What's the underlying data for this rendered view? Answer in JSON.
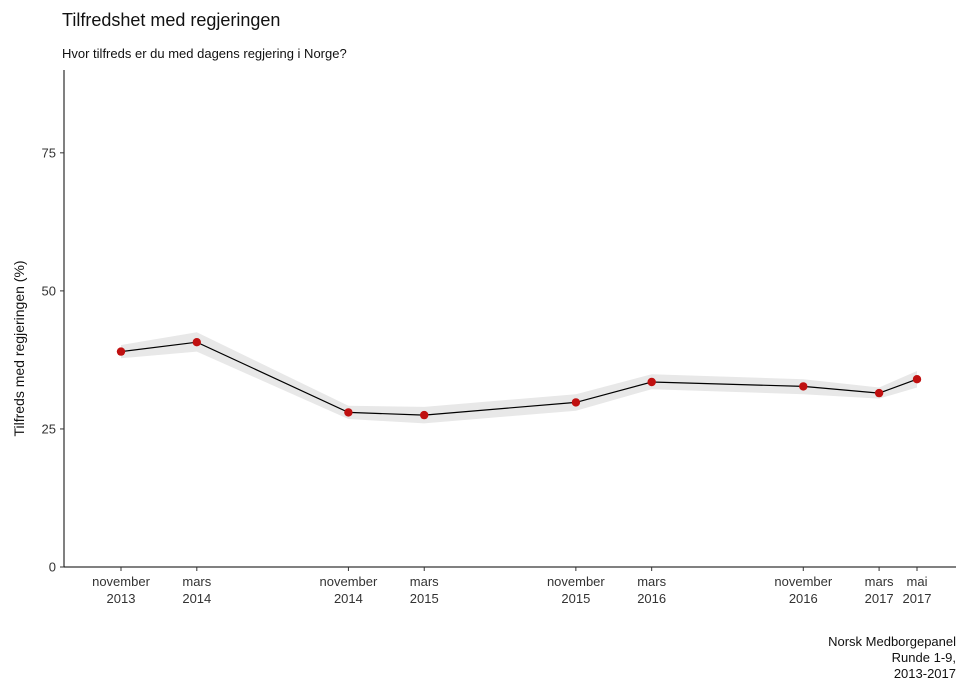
{
  "chart_data": {
    "type": "line",
    "title": "Tilfredshet med regjeringen",
    "subtitle": "Hvor tilfreds er du med dagens regjering i Norge?",
    "xlabel": "",
    "ylabel": "Tilfreds med regjeringen (%)",
    "ylim": [
      0,
      90
    ],
    "yticks": [
      0,
      25,
      50,
      75
    ],
    "grid": false,
    "legend": "none",
    "x": [
      "2013-11",
      "2014-03",
      "2014-11",
      "2015-03",
      "2015-11",
      "2016-03",
      "2016-11",
      "2017-03",
      "2017-05"
    ],
    "xtick_labels": [
      [
        "november",
        "2013"
      ],
      [
        "mars",
        "2014"
      ],
      [
        "november",
        "2014"
      ],
      [
        "mars",
        "2015"
      ],
      [
        "november",
        "2015"
      ],
      [
        "mars",
        "2016"
      ],
      [
        "november",
        "2016"
      ],
      [
        "mars",
        "2017"
      ],
      [
        "mai",
        "2017"
      ]
    ],
    "values": [
      39.0,
      40.7,
      28.0,
      27.5,
      29.8,
      33.5,
      32.7,
      31.5,
      34.0
    ],
    "ci_lower": [
      37.8,
      39.0,
      26.8,
      26.0,
      28.3,
      32.2,
      31.3,
      30.5,
      32.5
    ],
    "ci_upper": [
      40.2,
      42.5,
      29.2,
      29.0,
      31.3,
      34.9,
      34.0,
      32.5,
      35.5
    ],
    "colors": {
      "line": "#000000",
      "points": "#c01010",
      "ribbon": "#e8e8e8"
    }
  },
  "caption": [
    "Norsk Medborgepanel",
    "Runde 1-9,",
    "2013-2017"
  ]
}
